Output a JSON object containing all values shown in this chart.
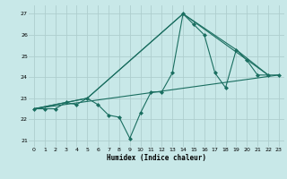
{
  "title": "",
  "xlabel": "Humidex (Indice chaleur)",
  "ylabel": "",
  "bg_color": "#c8e8e8",
  "grid_color": "#aecece",
  "line_color": "#1a6e60",
  "xlim": [
    -0.5,
    23.5
  ],
  "ylim": [
    20.7,
    27.4
  ],
  "yticks": [
    21,
    22,
    23,
    24,
    25,
    26,
    27
  ],
  "xticks": [
    0,
    1,
    2,
    3,
    4,
    5,
    6,
    7,
    8,
    9,
    10,
    11,
    12,
    13,
    14,
    15,
    16,
    17,
    18,
    19,
    20,
    21,
    22,
    23
  ],
  "series": [
    {
      "x": [
        0,
        1,
        2,
        3,
        4,
        5,
        6,
        7,
        8,
        9,
        10,
        11,
        12,
        13,
        14,
        15,
        16,
        17,
        18,
        19,
        20,
        21,
        22,
        23
      ],
      "y": [
        22.5,
        22.5,
        22.5,
        22.8,
        22.7,
        23.0,
        22.7,
        22.2,
        22.1,
        21.1,
        22.3,
        23.3,
        23.3,
        24.2,
        27.0,
        26.5,
        26.0,
        24.2,
        23.5,
        25.3,
        24.8,
        24.1,
        24.1,
        24.1
      ],
      "marker": true
    },
    {
      "x": [
        0,
        5,
        14,
        22
      ],
      "y": [
        22.5,
        23.0,
        27.0,
        24.1
      ],
      "marker": false
    },
    {
      "x": [
        0,
        5,
        14,
        19,
        22
      ],
      "y": [
        22.5,
        23.0,
        27.0,
        25.3,
        24.1
      ],
      "marker": false
    },
    {
      "x": [
        0,
        23
      ],
      "y": [
        22.5,
        24.1
      ],
      "marker": false
    }
  ]
}
